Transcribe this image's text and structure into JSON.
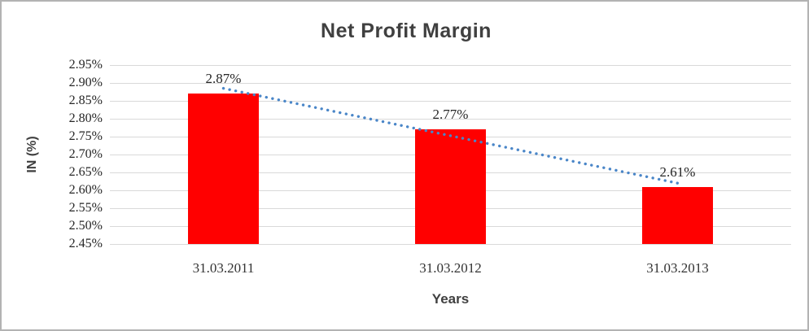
{
  "chart_data": {
    "type": "bar",
    "title": "Net Profit Margin",
    "xlabel": "Years",
    "ylabel": "IN (%)",
    "categories": [
      "31.03.2011",
      "31.03.2012",
      "31.03.2013"
    ],
    "values": [
      2.87,
      2.77,
      2.61
    ],
    "data_labels": [
      "2.87%",
      "2.77%",
      "2.61%"
    ],
    "ylim": [
      2.45,
      2.95
    ],
    "ytick_step": 0.05,
    "ytick_labels": [
      "2.95%",
      "2.90%",
      "2.85%",
      "2.80%",
      "2.75%",
      "2.70%",
      "2.65%",
      "2.60%",
      "2.55%",
      "2.50%",
      "2.45%"
    ],
    "grid": "horizontal",
    "legend": "none",
    "bar_color": "#ff0000",
    "gridline_color": "#d9d9d9",
    "title_color": "#404040",
    "tick_label_color": "#262626",
    "trendline": {
      "type": "linear",
      "style": "dotted",
      "color": "#4a86c8",
      "start_value": 2.885,
      "end_value": 2.62
    }
  }
}
